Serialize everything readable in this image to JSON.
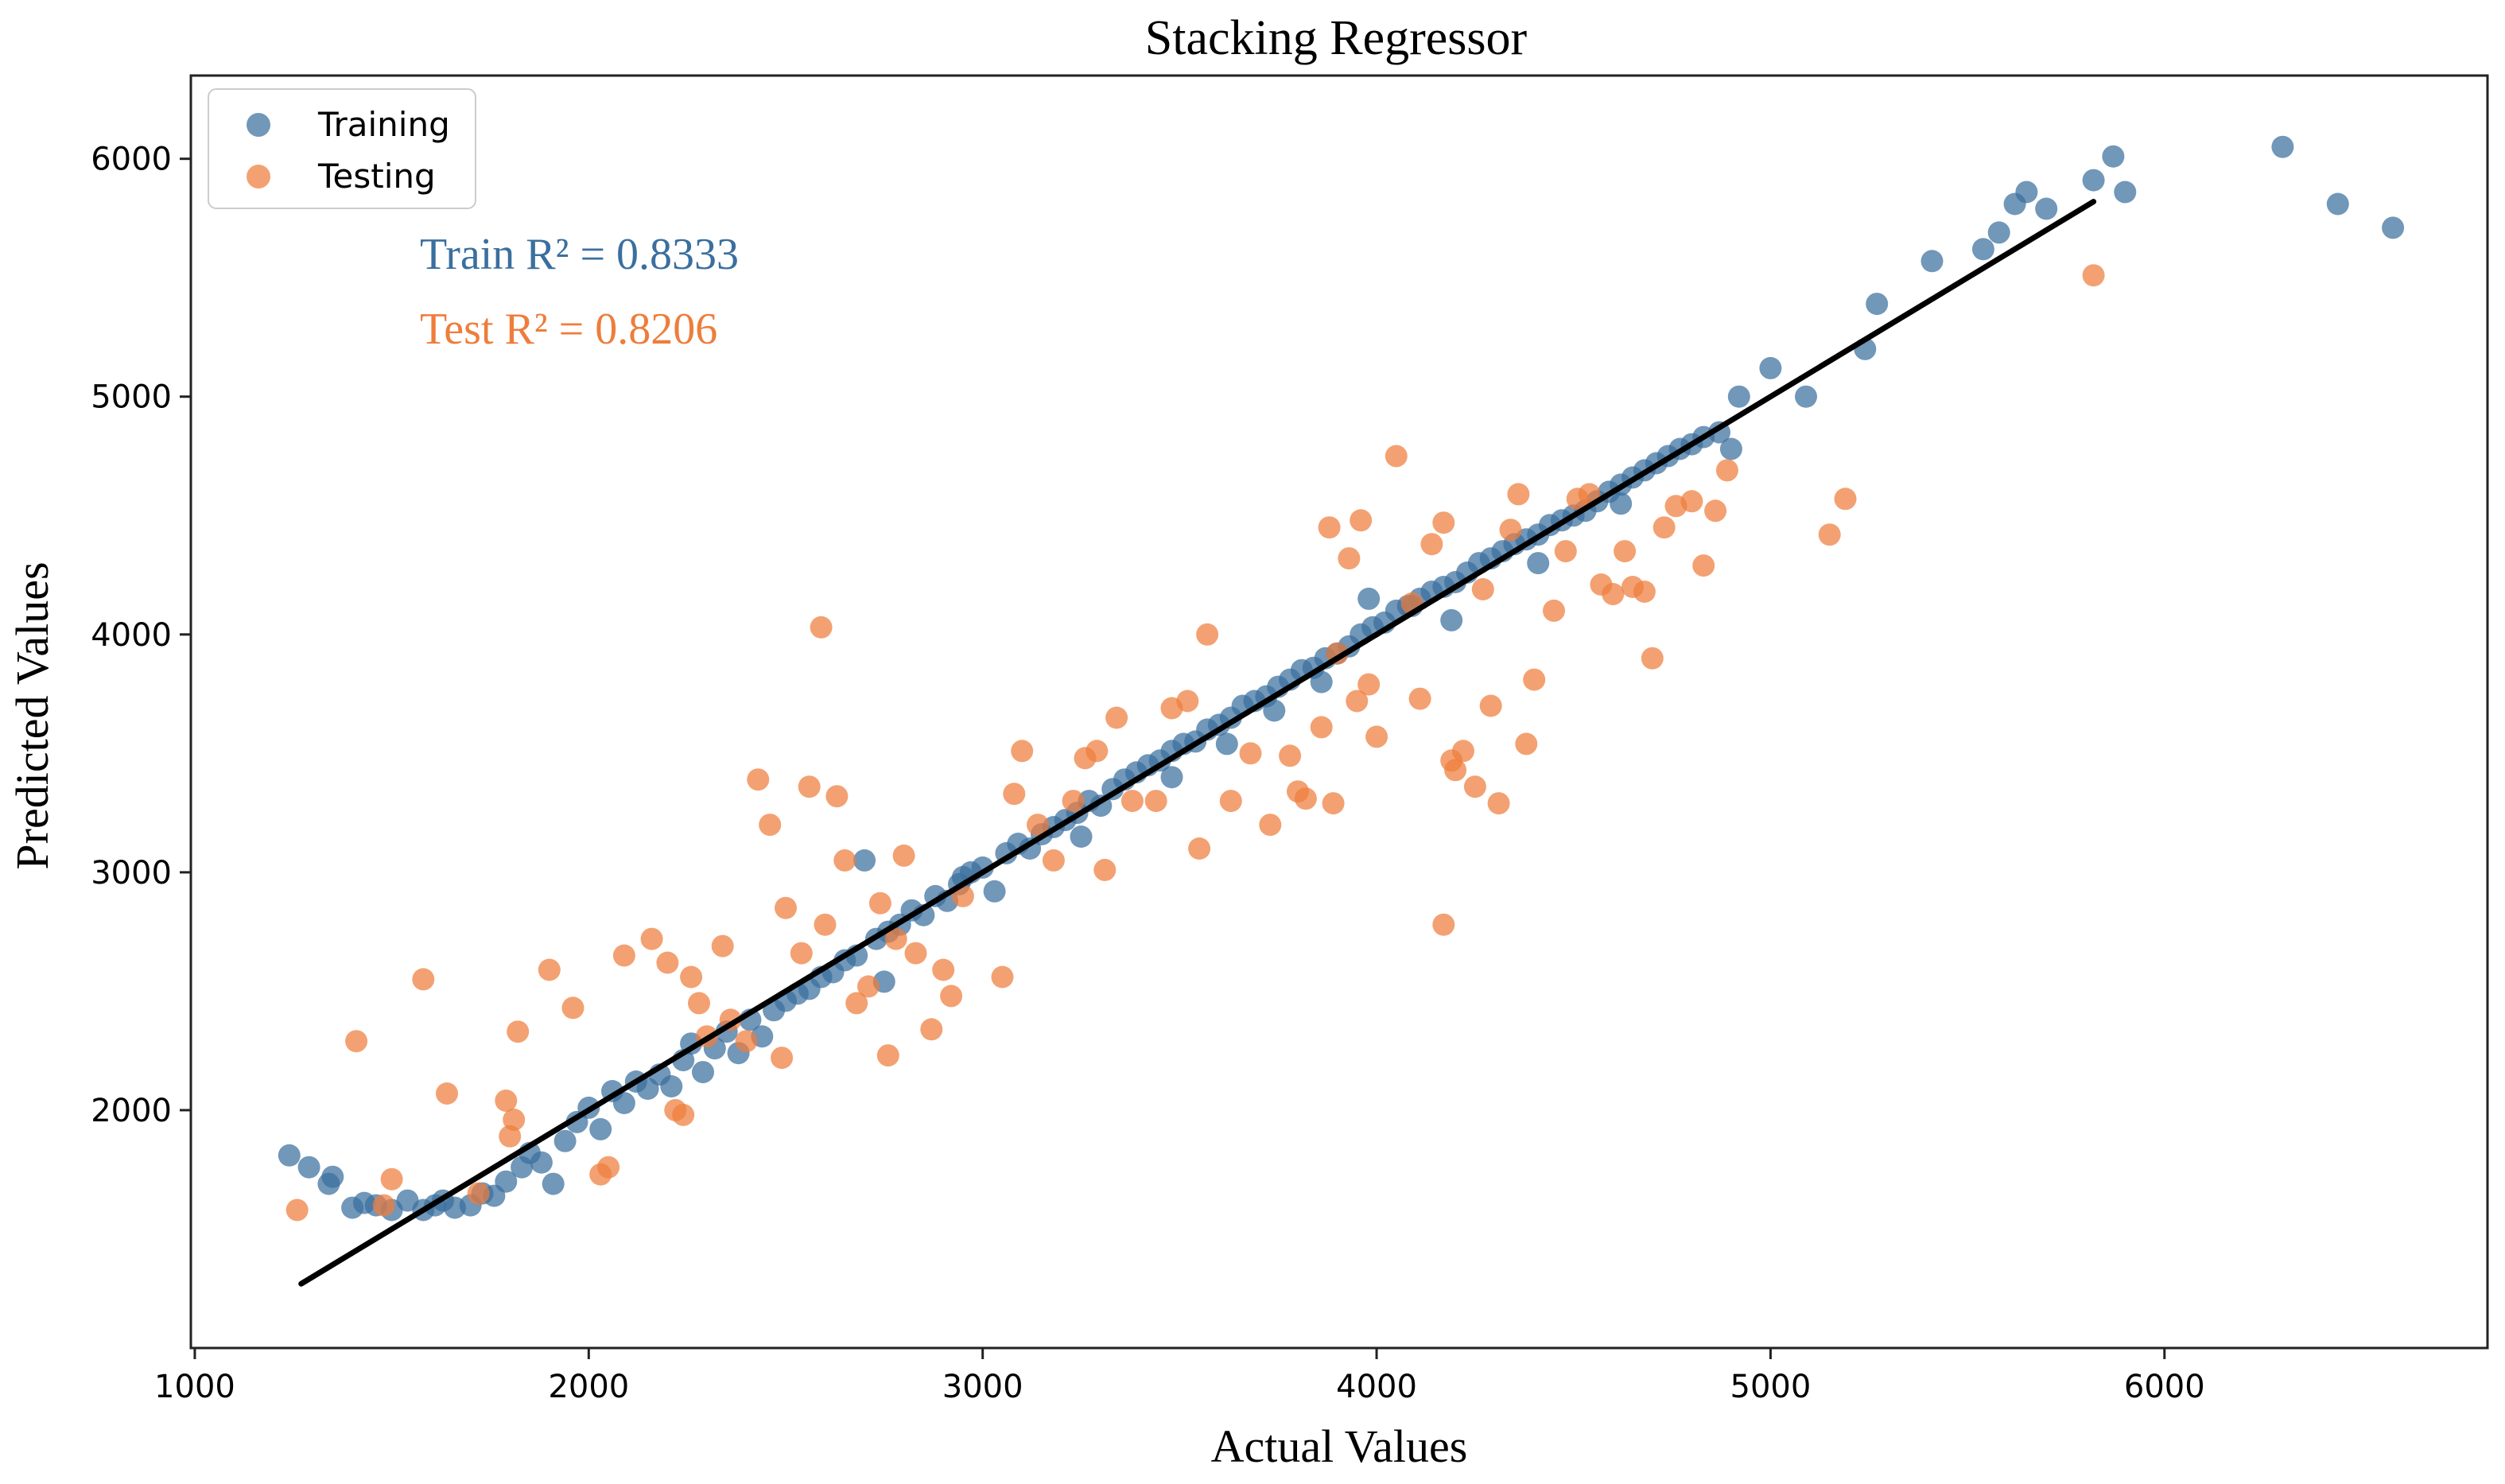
{
  "chart_data": {
    "type": "scatter",
    "title": "Stacking Regressor",
    "xlabel": "Actual Values",
    "ylabel": "Predicted Values",
    "xlim": [
      990,
      6820
    ],
    "ylim": [
      1000,
      6350
    ],
    "xticks": [
      1000,
      2000,
      3000,
      4000,
      5000,
      6000
    ],
    "yticks": [
      2000,
      3000,
      4000,
      5000,
      6000
    ],
    "grid": false,
    "legend_position": "top-left",
    "annotations": [
      {
        "text": "Train R² = 0.8333",
        "color": "#3a6f9e"
      },
      {
        "text": "Test R² = 0.8206",
        "color": "#ee7d3b"
      }
    ],
    "fit_line": {
      "x": [
        1270,
        5820
      ],
      "y": [
        1270,
        5820
      ],
      "color": "#000000"
    },
    "series": [
      {
        "name": "Training",
        "color": "#3a6f9e",
        "points": [
          [
            1240,
            1810
          ],
          [
            1290,
            1760
          ],
          [
            1340,
            1690
          ],
          [
            1350,
            1720
          ],
          [
            1400,
            1590
          ],
          [
            1430,
            1610
          ],
          [
            1460,
            1600
          ],
          [
            1500,
            1580
          ],
          [
            1540,
            1620
          ],
          [
            1580,
            1580
          ],
          [
            1610,
            1600
          ],
          [
            1630,
            1620
          ],
          [
            1660,
            1590
          ],
          [
            1700,
            1600
          ],
          [
            1730,
            1650
          ],
          [
            1760,
            1640
          ],
          [
            1790,
            1700
          ],
          [
            1830,
            1760
          ],
          [
            1850,
            1820
          ],
          [
            1880,
            1780
          ],
          [
            1910,
            1690
          ],
          [
            1940,
            1870
          ],
          [
            1970,
            1950
          ],
          [
            2000,
            2010
          ],
          [
            2030,
            1920
          ],
          [
            2060,
            2080
          ],
          [
            2090,
            2030
          ],
          [
            2120,
            2120
          ],
          [
            2150,
            2090
          ],
          [
            2180,
            2150
          ],
          [
            2210,
            2100
          ],
          [
            2240,
            2210
          ],
          [
            2260,
            2280
          ],
          [
            2290,
            2160
          ],
          [
            2320,
            2260
          ],
          [
            2350,
            2330
          ],
          [
            2380,
            2240
          ],
          [
            2410,
            2380
          ],
          [
            2440,
            2310
          ],
          [
            2470,
            2420
          ],
          [
            2500,
            2460
          ],
          [
            2530,
            2490
          ],
          [
            2560,
            2510
          ],
          [
            2590,
            2560
          ],
          [
            2620,
            2580
          ],
          [
            2650,
            2630
          ],
          [
            2680,
            2650
          ],
          [
            2700,
            3050
          ],
          [
            2730,
            2720
          ],
          [
            2760,
            2750
          ],
          [
            2790,
            2780
          ],
          [
            2820,
            2840
          ],
          [
            2850,
            2820
          ],
          [
            2880,
            2900
          ],
          [
            2910,
            2880
          ],
          [
            2940,
            2950
          ],
          [
            2970,
            3000
          ],
          [
            3000,
            3020
          ],
          [
            3030,
            2920
          ],
          [
            3060,
            3080
          ],
          [
            3090,
            3120
          ],
          [
            3120,
            3100
          ],
          [
            3150,
            3160
          ],
          [
            3180,
            3190
          ],
          [
            3210,
            3220
          ],
          [
            3240,
            3250
          ],
          [
            3270,
            3300
          ],
          [
            3300,
            3280
          ],
          [
            3330,
            3350
          ],
          [
            3360,
            3390
          ],
          [
            3390,
            3420
          ],
          [
            3420,
            3450
          ],
          [
            3450,
            3470
          ],
          [
            3480,
            3510
          ],
          [
            3510,
            3540
          ],
          [
            3540,
            3550
          ],
          [
            3570,
            3600
          ],
          [
            3600,
            3620
          ],
          [
            3630,
            3650
          ],
          [
            3660,
            3700
          ],
          [
            3690,
            3720
          ],
          [
            3720,
            3740
          ],
          [
            3750,
            3780
          ],
          [
            3780,
            3810
          ],
          [
            3810,
            3850
          ],
          [
            3840,
            3860
          ],
          [
            3870,
            3900
          ],
          [
            3900,
            3920
          ],
          [
            3930,
            3950
          ],
          [
            3960,
            4000
          ],
          [
            3990,
            4030
          ],
          [
            4020,
            4050
          ],
          [
            4050,
            4100
          ],
          [
            4080,
            4120
          ],
          [
            4110,
            4150
          ],
          [
            4140,
            4180
          ],
          [
            4170,
            4200
          ],
          [
            4200,
            4220
          ],
          [
            4230,
            4260
          ],
          [
            4260,
            4300
          ],
          [
            4290,
            4320
          ],
          [
            4320,
            4350
          ],
          [
            4350,
            4380
          ],
          [
            4380,
            4400
          ],
          [
            4410,
            4420
          ],
          [
            4440,
            4460
          ],
          [
            4470,
            4480
          ],
          [
            4500,
            4500
          ],
          [
            4530,
            4520
          ],
          [
            4560,
            4560
          ],
          [
            4590,
            4600
          ],
          [
            4620,
            4630
          ],
          [
            4650,
            4660
          ],
          [
            4680,
            4690
          ],
          [
            4710,
            4720
          ],
          [
            4740,
            4750
          ],
          [
            4770,
            4780
          ],
          [
            4800,
            4800
          ],
          [
            4830,
            4830
          ],
          [
            4870,
            4850
          ],
          [
            4900,
            4780
          ],
          [
            4920,
            5000
          ],
          [
            5000,
            5120
          ],
          [
            5090,
            5000
          ],
          [
            5240,
            5200
          ],
          [
            5270,
            5390
          ],
          [
            5410,
            5570
          ],
          [
            5540,
            5620
          ],
          [
            5580,
            5690
          ],
          [
            5620,
            5810
          ],
          [
            5650,
            5860
          ],
          [
            5700,
            5790
          ],
          [
            5820,
            5910
          ],
          [
            5870,
            6010
          ],
          [
            5900,
            5860
          ],
          [
            6300,
            6050
          ],
          [
            6440,
            5810
          ],
          [
            6580,
            5710
          ],
          [
            2750,
            2540
          ],
          [
            2950,
            2980
          ],
          [
            3250,
            3150
          ],
          [
            3480,
            3400
          ],
          [
            3620,
            3540
          ],
          [
            3860,
            3800
          ],
          [
            4090,
            4120
          ],
          [
            4190,
            4060
          ],
          [
            4410,
            4300
          ],
          [
            4620,
            4550
          ],
          [
            3980,
            4150
          ],
          [
            3740,
            3680
          ]
        ]
      },
      {
        "name": "Testing",
        "color": "#ee7d3b",
        "points": [
          [
            1260,
            1580
          ],
          [
            1410,
            2290
          ],
          [
            1480,
            1600
          ],
          [
            1500,
            1710
          ],
          [
            1580,
            2550
          ],
          [
            1640,
            2070
          ],
          [
            1720,
            1650
          ],
          [
            1790,
            2040
          ],
          [
            1810,
            1960
          ],
          [
            1820,
            2330
          ],
          [
            1900,
            2590
          ],
          [
            1960,
            2430
          ],
          [
            2030,
            1730
          ],
          [
            2090,
            2650
          ],
          [
            2160,
            2720
          ],
          [
            2200,
            2620
          ],
          [
            2220,
            2000
          ],
          [
            2260,
            2560
          ],
          [
            2280,
            2450
          ],
          [
            2300,
            2310
          ],
          [
            2340,
            2690
          ],
          [
            2360,
            2380
          ],
          [
            2400,
            2290
          ],
          [
            2430,
            3390
          ],
          [
            2460,
            3200
          ],
          [
            2490,
            2220
          ],
          [
            2500,
            2850
          ],
          [
            2540,
            2660
          ],
          [
            2560,
            3360
          ],
          [
            2590,
            4030
          ],
          [
            2600,
            2780
          ],
          [
            2630,
            3320
          ],
          [
            2650,
            3050
          ],
          [
            2680,
            2450
          ],
          [
            2710,
            2520
          ],
          [
            2740,
            2870
          ],
          [
            2760,
            2230
          ],
          [
            2780,
            2720
          ],
          [
            2800,
            3070
          ],
          [
            2830,
            2660
          ],
          [
            2870,
            2340
          ],
          [
            2900,
            2590
          ],
          [
            2920,
            2480
          ],
          [
            2950,
            2900
          ],
          [
            3050,
            2560
          ],
          [
            3080,
            3330
          ],
          [
            3100,
            3510
          ],
          [
            3140,
            3200
          ],
          [
            3180,
            3050
          ],
          [
            3230,
            3300
          ],
          [
            3260,
            3480
          ],
          [
            3290,
            3510
          ],
          [
            3310,
            3010
          ],
          [
            3340,
            3650
          ],
          [
            3380,
            3300
          ],
          [
            3440,
            3300
          ],
          [
            3480,
            3690
          ],
          [
            3520,
            3720
          ],
          [
            3550,
            3100
          ],
          [
            3570,
            4000
          ],
          [
            3630,
            3300
          ],
          [
            3680,
            3500
          ],
          [
            3730,
            3200
          ],
          [
            3780,
            3490
          ],
          [
            3800,
            3340
          ],
          [
            3820,
            3310
          ],
          [
            3860,
            3610
          ],
          [
            3890,
            3290
          ],
          [
            3900,
            3920
          ],
          [
            3950,
            3720
          ],
          [
            3980,
            3790
          ],
          [
            4000,
            3570
          ],
          [
            4050,
            4750
          ],
          [
            4090,
            4130
          ],
          [
            4110,
            3730
          ],
          [
            4140,
            4380
          ],
          [
            4170,
            4470
          ],
          [
            4190,
            3470
          ],
          [
            4200,
            3430
          ],
          [
            4220,
            3510
          ],
          [
            4250,
            3360
          ],
          [
            4270,
            4190
          ],
          [
            4290,
            3700
          ],
          [
            4310,
            3290
          ],
          [
            4340,
            4440
          ],
          [
            4380,
            3540
          ],
          [
            4400,
            3810
          ],
          [
            4450,
            4100
          ],
          [
            4480,
            4350
          ],
          [
            4510,
            4570
          ],
          [
            4540,
            4590
          ],
          [
            4570,
            4210
          ],
          [
            4600,
            4170
          ],
          [
            4630,
            4350
          ],
          [
            4650,
            4200
          ],
          [
            4680,
            4180
          ],
          [
            4700,
            3900
          ],
          [
            4730,
            4450
          ],
          [
            4760,
            4540
          ],
          [
            4800,
            4560
          ],
          [
            4830,
            4290
          ],
          [
            4860,
            4520
          ],
          [
            4890,
            4690
          ],
          [
            5150,
            4420
          ],
          [
            5190,
            4570
          ],
          [
            5820,
            5510
          ],
          [
            4170,
            2780
          ],
          [
            4360,
            4590
          ],
          [
            3880,
            4450
          ],
          [
            3930,
            4320
          ],
          [
            3960,
            4480
          ],
          [
            2240,
            1980
          ],
          [
            1800,
            1890
          ],
          [
            2050,
            1760
          ]
        ]
      }
    ]
  }
}
